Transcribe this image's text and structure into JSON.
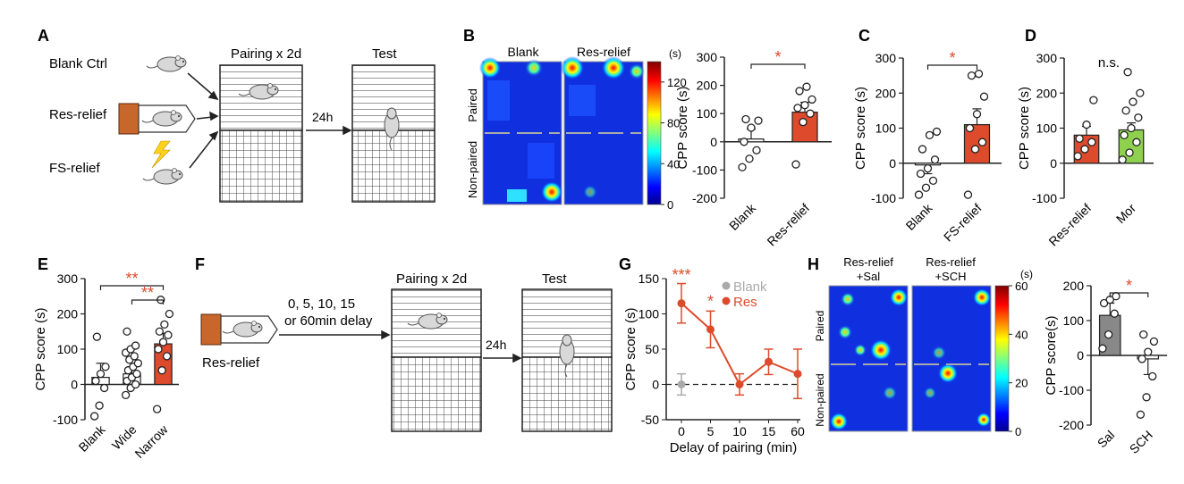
{
  "panels": {
    "A": {
      "letter": "A",
      "groups": [
        "Blank Ctrl",
        "Res-relief",
        "FS-relief"
      ],
      "pairing_label": "Pairing x 2d",
      "test_label": "Test",
      "interval": "24h"
    },
    "B": {
      "letter": "B",
      "heatmap": {
        "columns": [
          "Blank",
          "Res-relief"
        ],
        "rows": [
          "Paired",
          "Non-paired"
        ],
        "colorbar": {
          "unit": "(s)",
          "ticks": [
            0,
            40,
            80,
            120
          ],
          "max": 140
        }
      }
    },
    "C": {
      "letter": "C"
    },
    "D": {
      "letter": "D"
    },
    "E": {
      "letter": "E"
    },
    "F": {
      "letter": "F",
      "group": "Res-relief",
      "delay_line1": "0, 5, 10, 15",
      "delay_line2": "or 60min delay",
      "pairing_label": "Pairing x 2d",
      "test_label": "Test",
      "interval": "24h"
    },
    "G": {
      "letter": "G"
    },
    "H": {
      "letter": "H",
      "heatmap": {
        "columns": [
          "Res-relief\n+Sal",
          "Res-relief\n+SCH"
        ],
        "col1_l1": "Res-relief",
        "col1_l2": "+Sal",
        "col2_l1": "Res-relief",
        "col2_l2": "+SCH",
        "rows": [
          "Paired",
          "Non-paired"
        ],
        "colorbar": {
          "unit": "(s)",
          "ticks": [
            0,
            20,
            40,
            60
          ],
          "max": 60
        }
      }
    }
  },
  "chart_data": [
    {
      "id": "B_bar",
      "type": "bar",
      "categories": [
        "Blank",
        "Res-relief"
      ],
      "values": [
        10,
        105
      ],
      "errors": [
        35,
        35
      ],
      "points": [
        [
          -90,
          -60,
          -30,
          0,
          50,
          75,
          80
        ],
        [
          -80,
          70,
          100,
          120,
          130,
          150,
          180,
          195
        ]
      ],
      "ylabel": "CPP score (s)",
      "ylim": [
        -200,
        300
      ],
      "yticks": [
        -200,
        -100,
        0,
        100,
        200,
        300
      ],
      "significance": "*",
      "colors": [
        "#ffffff",
        "#dd4a2c"
      ]
    },
    {
      "id": "C_bar",
      "type": "bar",
      "categories": [
        "Blank",
        "FS-relief"
      ],
      "values": [
        -5,
        110
      ],
      "errors": [
        25,
        45
      ],
      "points": [
        [
          -90,
          -70,
          -50,
          -30,
          -15,
          10,
          40,
          80,
          90
        ],
        [
          -90,
          40,
          60,
          100,
          140,
          190,
          250,
          255
        ]
      ],
      "ylabel": "CPP score (s)",
      "ylim": [
        -100,
        300
      ],
      "yticks": [
        -100,
        0,
        100,
        200,
        300
      ],
      "significance": "*",
      "colors": [
        "#ffffff",
        "#dd4a2c"
      ]
    },
    {
      "id": "D_bar",
      "type": "bar",
      "categories": [
        "Res-relief",
        "Mor"
      ],
      "values": [
        80,
        95
      ],
      "errors": [
        25,
        20
      ],
      "points": [
        [
          20,
          40,
          60,
          70,
          110,
          180
        ],
        [
          10,
          30,
          60,
          80,
          100,
          130,
          150,
          175,
          200,
          260
        ]
      ],
      "ylabel": "CPP score (s)",
      "ylim": [
        -100,
        300
      ],
      "yticks": [
        -100,
        0,
        100,
        200,
        300
      ],
      "significance": "n.s.",
      "colors": [
        "#dd4a2c",
        "#8fd14f"
      ]
    },
    {
      "id": "E_bar",
      "type": "bar",
      "categories": [
        "Blank",
        "Wide",
        "Narrow"
      ],
      "values": [
        20,
        30,
        115
      ],
      "errors": [
        40,
        20,
        30
      ],
      "points": [
        [
          -90,
          -60,
          -10,
          10,
          30,
          50,
          135
        ],
        [
          -30,
          -10,
          0,
          10,
          20,
          30,
          40,
          50,
          60,
          70,
          80,
          90,
          100,
          110,
          150
        ],
        [
          -70,
          40,
          80,
          100,
          120,
          140,
          150,
          170,
          200,
          240
        ]
      ],
      "ylabel": "CPP score (s)",
      "ylim": [
        -100,
        300
      ],
      "yticks": [
        -100,
        0,
        100,
        200,
        300
      ],
      "significance": [
        "**",
        "**"
      ],
      "colors": [
        "#ffffff",
        "#ffffff",
        "#dd4a2c"
      ]
    },
    {
      "id": "G_line",
      "type": "line",
      "x": [
        "0",
        "5",
        "10",
        "15",
        "60"
      ],
      "series": [
        {
          "name": "Blank",
          "values": [
            0,
            null,
            null,
            null,
            null
          ],
          "errors": [
            15,
            null,
            null,
            null,
            null
          ],
          "color": "#aaaaaa"
        },
        {
          "name": "Res",
          "values": [
            115,
            78,
            0,
            32,
            15
          ],
          "errors": [
            28,
            26,
            15,
            18,
            35
          ],
          "color": "#dd4a2c"
        }
      ],
      "xlabel": "Delay of pairing (min)",
      "ylabel": "CPP score (s)",
      "ylim": [
        -50,
        150
      ],
      "yticks": [
        -50,
        0,
        50,
        100,
        150
      ],
      "significance": [
        "***",
        "*"
      ]
    },
    {
      "id": "H_bar",
      "type": "bar",
      "categories": [
        "Sal",
        "SCH"
      ],
      "values": [
        115,
        -10
      ],
      "errors": [
        35,
        45
      ],
      "points": [
        [
          20,
          60,
          120,
          150,
          160,
          170
        ],
        [
          -170,
          -120,
          -60,
          -10,
          10,
          40,
          60
        ]
      ],
      "ylabel": "CPP score(s)",
      "ylim": [
        -200,
        200
      ],
      "yticks": [
        -200,
        -100,
        0,
        100,
        200
      ],
      "significance": "*",
      "colors": [
        "#888888",
        "#ffffff"
      ]
    }
  ]
}
